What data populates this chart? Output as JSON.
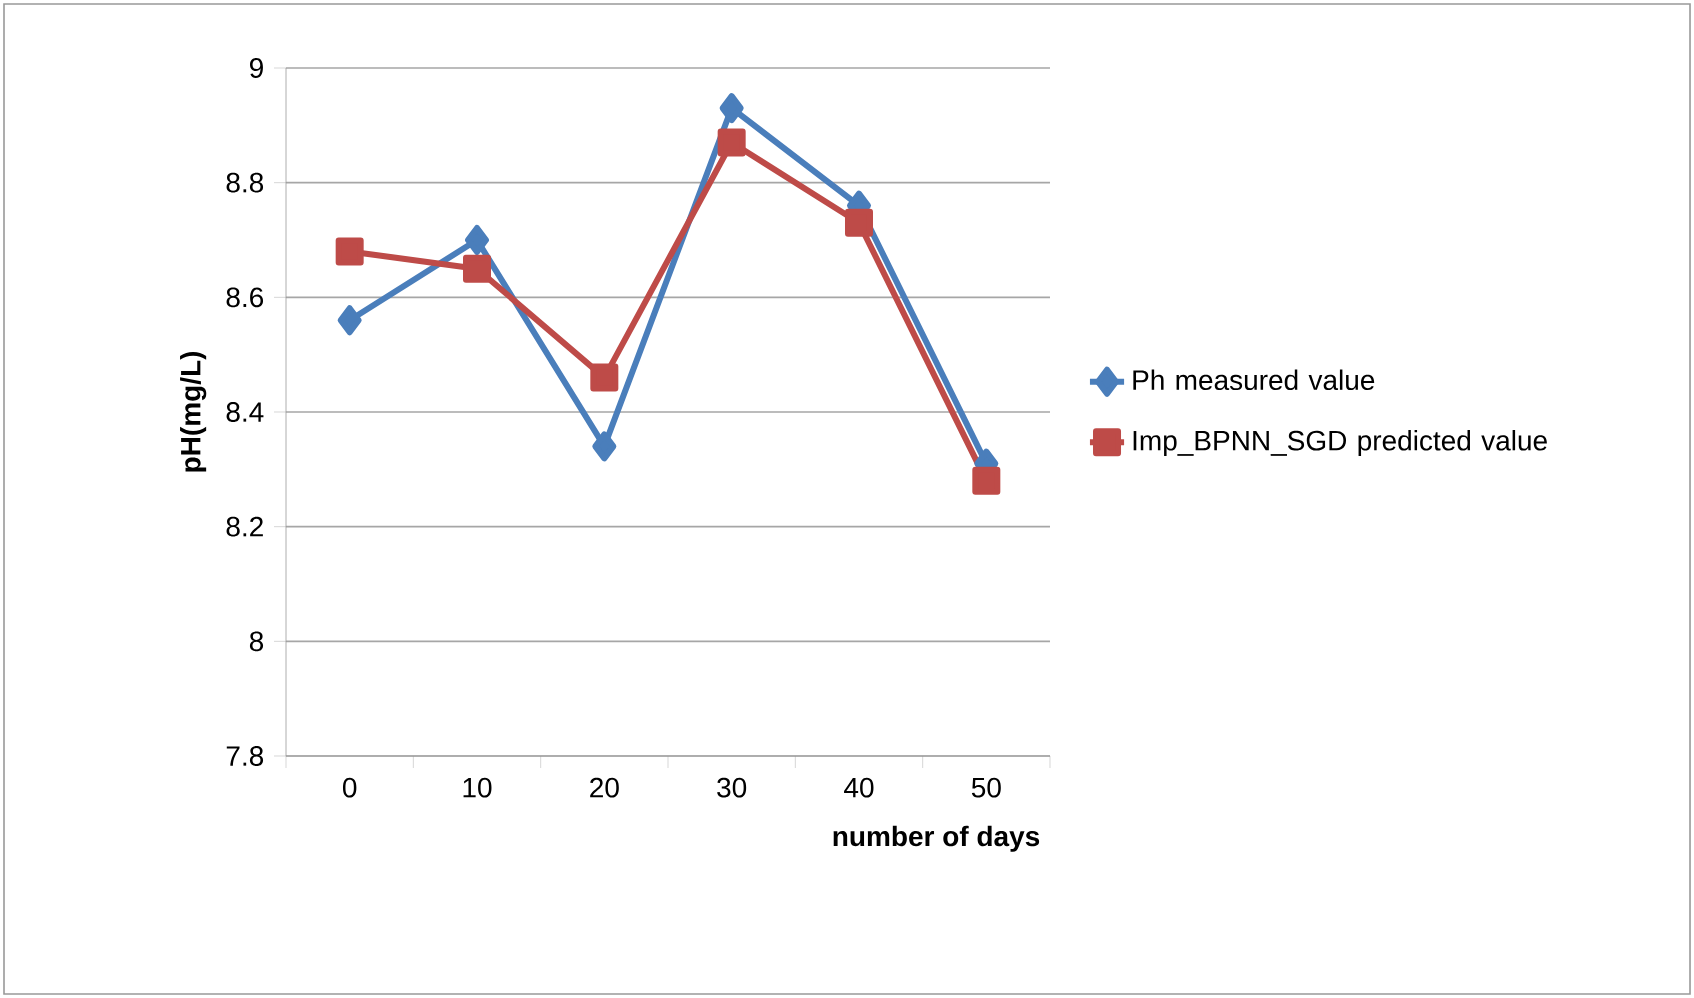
{
  "chart_data": {
    "type": "line",
    "xlabel": "number of days",
    "ylabel": "pH(mg/L)",
    "categories": [
      "0",
      "10",
      "20",
      "30",
      "40",
      "50"
    ],
    "series": [
      {
        "name": "Ph measured value",
        "color": "#4a7ebb",
        "marker": "diamond",
        "values": [
          8.56,
          8.7,
          8.34,
          8.93,
          8.76,
          8.31
        ]
      },
      {
        "name": "Imp_BPNN_SGD predicted value",
        "color": "#be4b48",
        "marker": "square",
        "values": [
          8.68,
          8.65,
          8.46,
          8.87,
          8.73,
          8.28
        ]
      }
    ],
    "ylim": [
      7.8,
      9
    ],
    "yticks": [
      7.8,
      8,
      8.2,
      8.4,
      8.6,
      8.8,
      9
    ],
    "grid": "y",
    "legend": "right",
    "line_style": "solid"
  }
}
